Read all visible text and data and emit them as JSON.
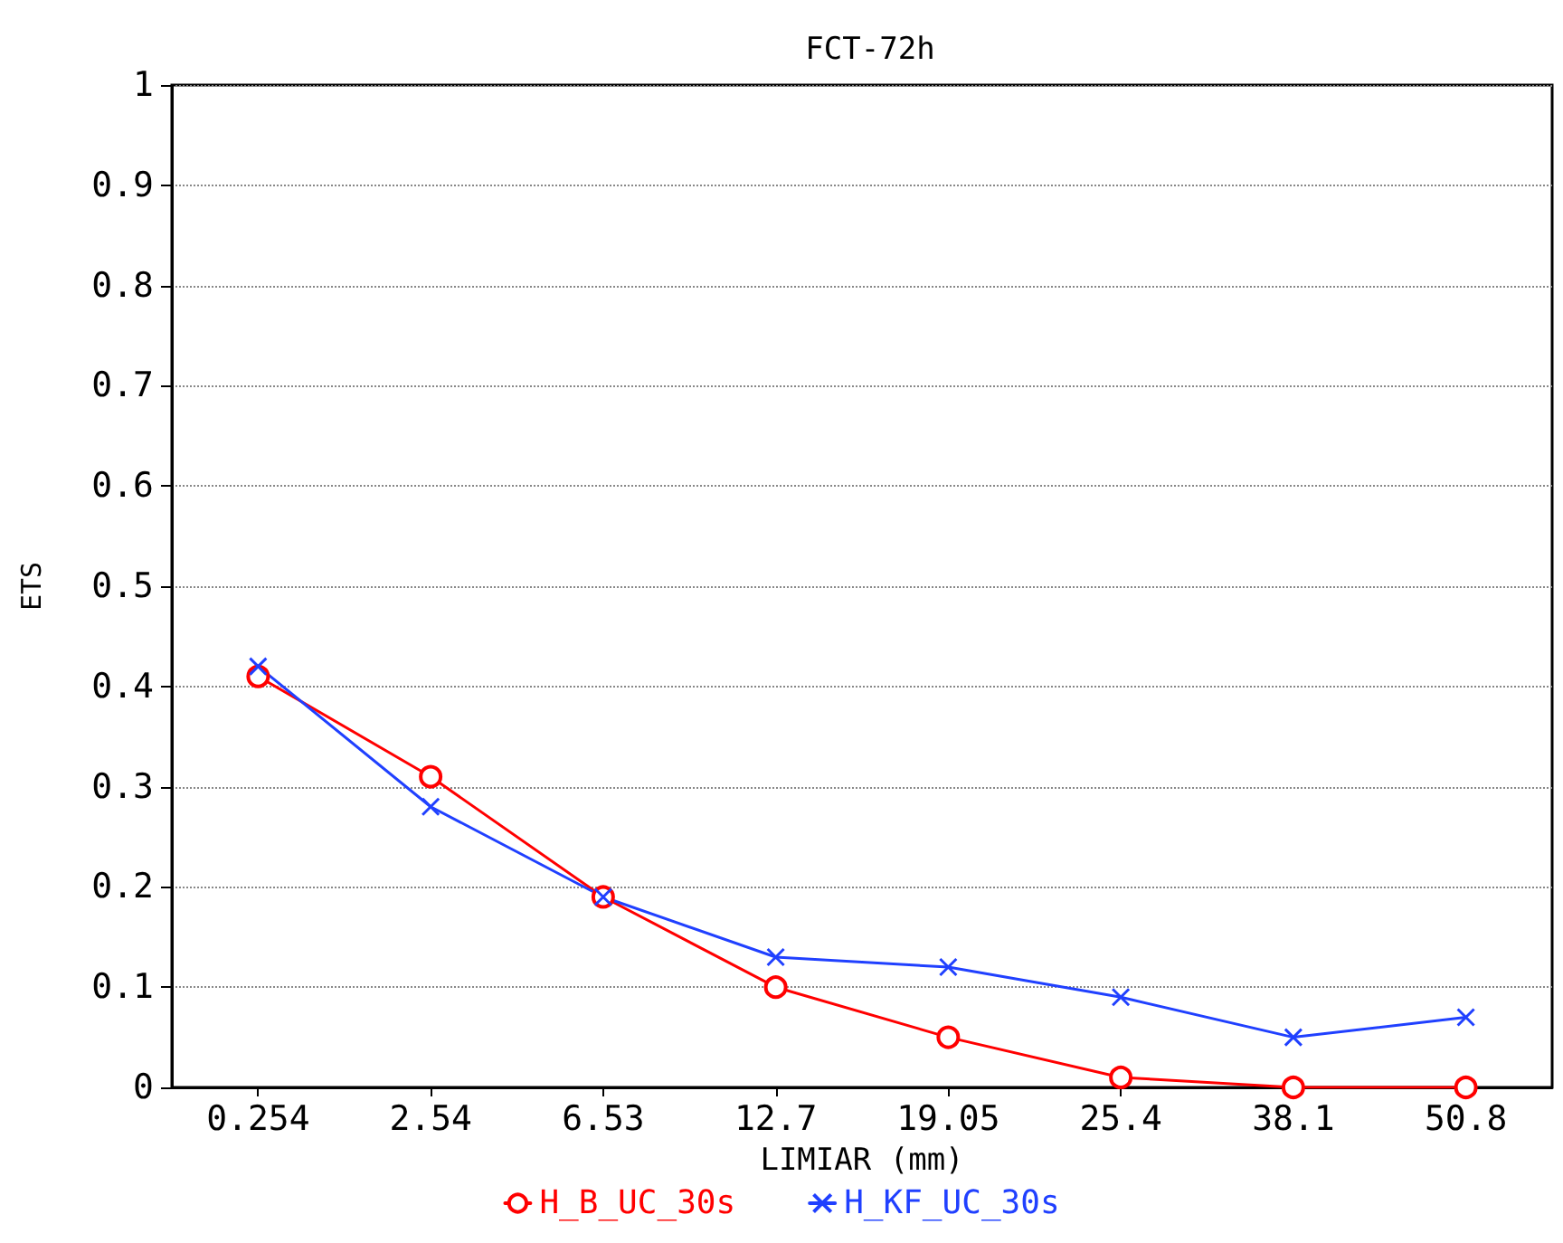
{
  "chart_data": {
    "type": "line",
    "title": "FCT-72h",
    "xlabel": "LIMIAR (mm)",
    "ylabel": "ETS",
    "categories": [
      "0.254",
      "2.54",
      "6.53",
      "12.7",
      "19.05",
      "25.4",
      "38.1",
      "50.8"
    ],
    "series": [
      {
        "name": "H_B_UC_30s",
        "color": "#ff0000",
        "marker": "circle",
        "values": [
          0.41,
          0.31,
          0.19,
          0.1,
          0.05,
          0.01,
          0.0,
          0.0
        ]
      },
      {
        "name": "H_KF_UC_30s",
        "color": "#2040ff",
        "marker": "cross",
        "values": [
          0.42,
          0.28,
          0.19,
          0.13,
          0.12,
          0.09,
          0.05,
          0.07
        ]
      }
    ],
    "ylim": [
      0,
      1
    ],
    "yticks": [
      0,
      0.1,
      0.2,
      0.3,
      0.4,
      0.5,
      0.6,
      0.7,
      0.8,
      0.9,
      1
    ],
    "grid": "y",
    "legend": "bottom",
    "line_style": "solid"
  }
}
